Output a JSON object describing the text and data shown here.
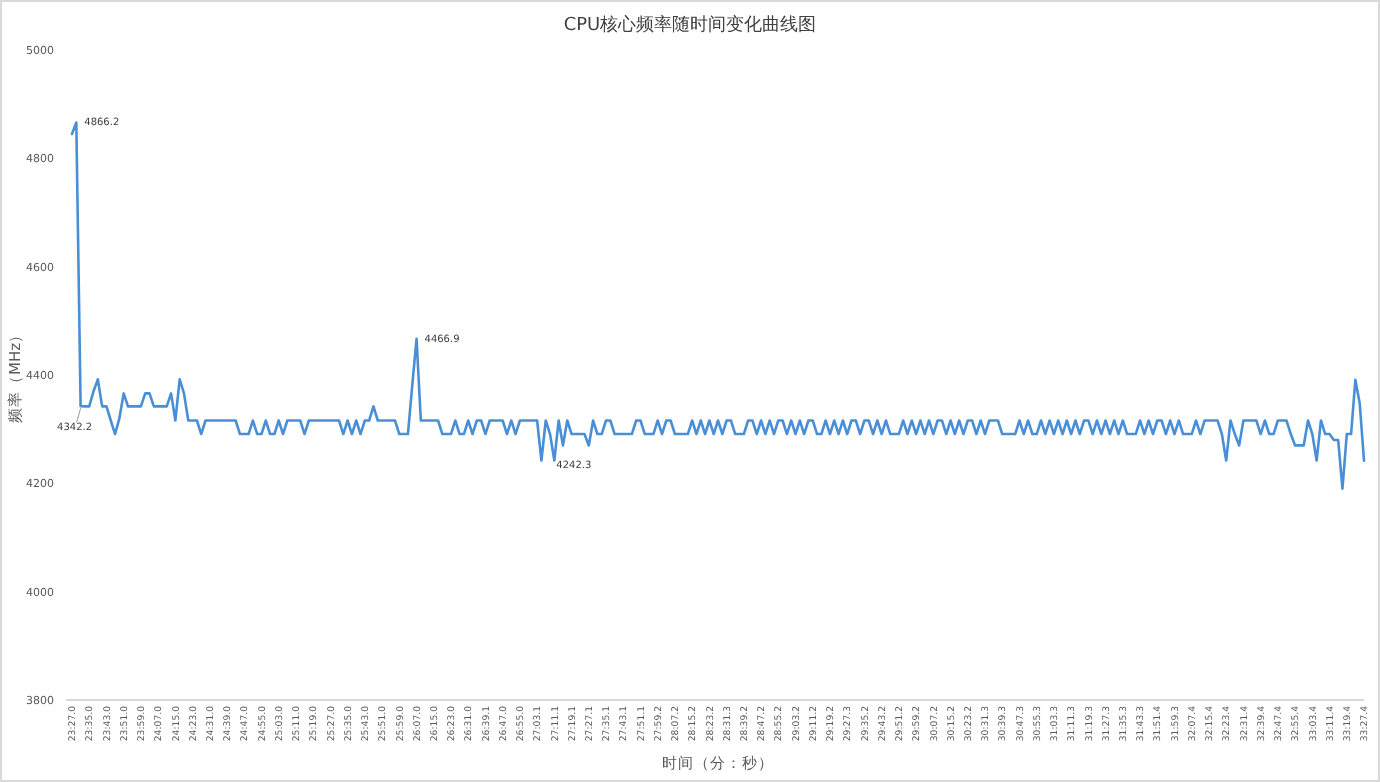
{
  "chart_data": {
    "type": "line",
    "title": "CPU核心频率随时间变化曲线图",
    "xlabel": "时间（分：秒）",
    "ylabel": "频率（MHz）",
    "categories": [
      "23:27.0",
      null,
      null,
      null,
      "23:35.0",
      null,
      null,
      null,
      "23:43.0",
      null,
      null,
      null,
      "23:51.0",
      null,
      null,
      null,
      "23:59.0",
      null,
      null,
      null,
      "24:07.0",
      null,
      null,
      null,
      "24:15.0",
      null,
      null,
      null,
      "24:23.0",
      null,
      null,
      null,
      "24:31.0",
      null,
      null,
      null,
      "24:39.0",
      null,
      null,
      null,
      "24:47.0",
      null,
      null,
      null,
      "24:55.0",
      null,
      null,
      null,
      "25:03.0",
      null,
      null,
      null,
      "25:11.0",
      null,
      null,
      null,
      "25:19.0",
      null,
      null,
      null,
      "25:27.0",
      null,
      null,
      null,
      "25:35.0",
      null,
      null,
      null,
      "25:43.0",
      null,
      null,
      null,
      "25:51.0",
      null,
      null,
      null,
      "25:59.0",
      null,
      null,
      null,
      "26:07.0",
      null,
      null,
      null,
      "26:15.0",
      null,
      null,
      null,
      "26:23.0",
      null,
      null,
      null,
      "26:31.0",
      null,
      null,
      null,
      "26:39.1",
      null,
      null,
      null,
      "26:47.0",
      null,
      null,
      null,
      "26:55.0",
      null,
      null,
      null,
      "27:03.1",
      null,
      null,
      null,
      "27:11.1",
      null,
      null,
      null,
      "27:19.1",
      null,
      null,
      null,
      "27:27.1",
      null,
      null,
      null,
      "27:35.1",
      null,
      null,
      null,
      "27:43.1",
      null,
      null,
      null,
      "27:51.1",
      null,
      null,
      null,
      "27:59.2",
      null,
      null,
      null,
      "28:07.2",
      null,
      null,
      null,
      "28:15.2",
      null,
      null,
      null,
      "28:23.2",
      null,
      null,
      null,
      "28:31.3",
      null,
      null,
      null,
      "28:39.2",
      null,
      null,
      null,
      "28:47.2",
      null,
      null,
      null,
      "28:55.2",
      null,
      null,
      null,
      "29:03.2",
      null,
      null,
      null,
      "29:11.2",
      null,
      null,
      null,
      "29:19.2",
      null,
      null,
      null,
      "29:27.3",
      null,
      null,
      null,
      "29:35.2",
      null,
      null,
      null,
      "29:43.2",
      null,
      null,
      null,
      "29:51.2",
      null,
      null,
      null,
      "29:59.2",
      null,
      null,
      null,
      "30:07.2",
      null,
      null,
      null,
      "30:15.2",
      null,
      null,
      null,
      "30:23.2",
      null,
      null,
      null,
      "30:31.3",
      null,
      null,
      null,
      "30:39.3",
      null,
      null,
      null,
      "30:47.3",
      null,
      null,
      null,
      "30:55.3",
      null,
      null,
      null,
      "31:03.3",
      null,
      null,
      null,
      "31:11.3",
      null,
      null,
      null,
      "31:19.3",
      null,
      null,
      null,
      "31:27.3",
      null,
      null,
      null,
      "31:35.3",
      null,
      null,
      null,
      "31:43.3",
      null,
      null,
      null,
      "31:51.4",
      null,
      null,
      null,
      "31:59.3",
      null,
      null,
      null,
      "32:07.4",
      null,
      null,
      null,
      "32:15.4",
      null,
      null,
      null,
      "32:23.4",
      null,
      null,
      null,
      "32:31.4",
      null,
      null,
      null,
      "32:39.4",
      null,
      null,
      null,
      "32:47.4",
      null,
      null,
      null,
      "32:55.4",
      null,
      null,
      null,
      "33:03.4",
      null,
      null,
      null,
      "33:11.4",
      null,
      null,
      null,
      "33:19.4",
      null,
      null,
      null,
      "33:27.4"
    ],
    "series": [
      {
        "color": "#4a8fd6",
        "values": [
          4845,
          4866.2,
          4342.2,
          4342,
          4342,
          4370,
          4392,
          4342,
          4342,
          4316,
          4291,
          4320,
          4366,
          4342,
          4342,
          4342,
          4342,
          4366,
          4366,
          4342,
          4342,
          4342,
          4342,
          4366,
          4316,
          4392,
          4366,
          4316,
          4316,
          4316,
          4291,
          4316,
          4316,
          4316,
          4316,
          4316,
          4316,
          4316,
          4316,
          4291,
          4291,
          4291,
          4316,
          4291,
          4291,
          4316,
          4291,
          4291,
          4316,
          4291,
          4316,
          4316,
          4316,
          4316,
          4291,
          4316,
          4316,
          4316,
          4316,
          4316,
          4316,
          4316,
          4316,
          4291,
          4316,
          4291,
          4316,
          4291,
          4316,
          4316,
          4342,
          4316,
          4316,
          4316,
          4316,
          4316,
          4291,
          4291,
          4291,
          4380,
          4466.9,
          4316,
          4316,
          4316,
          4316,
          4316,
          4291,
          4291,
          4291,
          4316,
          4291,
          4291,
          4316,
          4291,
          4316,
          4316,
          4291,
          4316,
          4316,
          4316,
          4316,
          4291,
          4316,
          4291,
          4316,
          4316,
          4316,
          4316,
          4316,
          4242,
          4316,
          4291,
          4242.3,
          4316,
          4270,
          4316,
          4291,
          4291,
          4291,
          4291,
          4270,
          4316,
          4291,
          4291,
          4316,
          4316,
          4291,
          4291,
          4291,
          4291,
          4291,
          4316,
          4316,
          4291,
          4291,
          4291,
          4316,
          4291,
          4316,
          4316,
          4291,
          4291,
          4291,
          4291,
          4316,
          4291,
          4316,
          4291,
          4316,
          4291,
          4316,
          4291,
          4316,
          4316,
          4291,
          4291,
          4291,
          4316,
          4316,
          4291,
          4316,
          4291,
          4316,
          4291,
          4316,
          4316,
          4291,
          4316,
          4291,
          4316,
          4291,
          4316,
          4316,
          4291,
          4291,
          4316,
          4291,
          4316,
          4291,
          4316,
          4291,
          4316,
          4316,
          4291,
          4316,
          4316,
          4291,
          4316,
          4291,
          4316,
          4291,
          4291,
          4291,
          4316,
          4291,
          4316,
          4291,
          4316,
          4291,
          4316,
          4291,
          4316,
          4316,
          4291,
          4316,
          4291,
          4316,
          4291,
          4316,
          4316,
          4291,
          4316,
          4291,
          4316,
          4316,
          4316,
          4291,
          4291,
          4291,
          4291,
          4316,
          4291,
          4316,
          4291,
          4291,
          4316,
          4291,
          4316,
          4291,
          4316,
          4291,
          4316,
          4291,
          4316,
          4291,
          4316,
          4316,
          4291,
          4316,
          4291,
          4316,
          4291,
          4316,
          4291,
          4316,
          4291,
          4291,
          4291,
          4316,
          4291,
          4316,
          4291,
          4316,
          4316,
          4291,
          4316,
          4291,
          4316,
          4291,
          4291,
          4291,
          4316,
          4291,
          4316,
          4316,
          4316,
          4316,
          4291,
          4242,
          4316,
          4291,
          4270,
          4316,
          4316,
          4316,
          4316,
          4291,
          4316,
          4291,
          4291,
          4316,
          4316,
          4316,
          4291,
          4270,
          4270,
          4270,
          4316,
          4291,
          4242,
          4316,
          4291,
          4291,
          4280,
          4280,
          4190,
          4291,
          4291,
          4391,
          4348,
          4242
        ],
        "value_labels": [
          null,
          "4866.2",
          "4342.2",
          null,
          null,
          null,
          null,
          null,
          null,
          null,
          null,
          null,
          null,
          null,
          null,
          null,
          null,
          null,
          null,
          null,
          null,
          null,
          null,
          null,
          null,
          null,
          null,
          null,
          null,
          null,
          null,
          null,
          null,
          null,
          null,
          null,
          null,
          null,
          null,
          null,
          null,
          null,
          null,
          null,
          null,
          null,
          null,
          null,
          null,
          null,
          null,
          null,
          null,
          null,
          null,
          null,
          null,
          null,
          null,
          null,
          null,
          null,
          null,
          null,
          null,
          null,
          null,
          null,
          null,
          null,
          null,
          null,
          null,
          null,
          null,
          null,
          null,
          null,
          null,
          null,
          "4466.9",
          null,
          null,
          null,
          null,
          null,
          null,
          null,
          null,
          null,
          null,
          null,
          null,
          null,
          null,
          null,
          null,
          null,
          null,
          null,
          null,
          null,
          null,
          null,
          null,
          null,
          null,
          null,
          null,
          null,
          null,
          null,
          "4242.3",
          null,
          null,
          null,
          null,
          null,
          null,
          null,
          null,
          null,
          null,
          null,
          null,
          null,
          null,
          null,
          null,
          null,
          null,
          null,
          null,
          null,
          null,
          null,
          null,
          null,
          null,
          null,
          null,
          null,
          null,
          null,
          null,
          null,
          null,
          null,
          null,
          null,
          null,
          null,
          null,
          null,
          null,
          null,
          null,
          null,
          null,
          null,
          null,
          null,
          null,
          null,
          null,
          null,
          null,
          null,
          null,
          null,
          null,
          null,
          null,
          null,
          null,
          null,
          null,
          null,
          null,
          null,
          null,
          null,
          null,
          null,
          null,
          null,
          null,
          null,
          null,
          null,
          null,
          null,
          null,
          null,
          null,
          null,
          null,
          null,
          null,
          null,
          null,
          null,
          null,
          null,
          null,
          null,
          null,
          null,
          null,
          null,
          null,
          null,
          null,
          null,
          null,
          null,
          null,
          null,
          null,
          null,
          null,
          null,
          null,
          null,
          null,
          null,
          null,
          null,
          null,
          null,
          null,
          null,
          null,
          null,
          null,
          null,
          null,
          null,
          null,
          null,
          null,
          null,
          null,
          null,
          null,
          null,
          null,
          null,
          null,
          null,
          null,
          null,
          null,
          null,
          null,
          null,
          null,
          null,
          null,
          null,
          null,
          null,
          null,
          null,
          null,
          null,
          null,
          null,
          null,
          null,
          null,
          null,
          null,
          null,
          null,
          null,
          null,
          null,
          null,
          null,
          null,
          null,
          null,
          null,
          null,
          null,
          null,
          null,
          null,
          null,
          null,
          null,
          null,
          null,
          null,
          null,
          null,
          null,
          null,
          null,
          null
        ]
      }
    ],
    "ylim": [
      3800,
      5000
    ],
    "yticks": [
      3800,
      4000,
      4200,
      4400,
      4600,
      4800,
      5000
    ],
    "grid": false,
    "marker": "none",
    "line_style": "solid"
  }
}
